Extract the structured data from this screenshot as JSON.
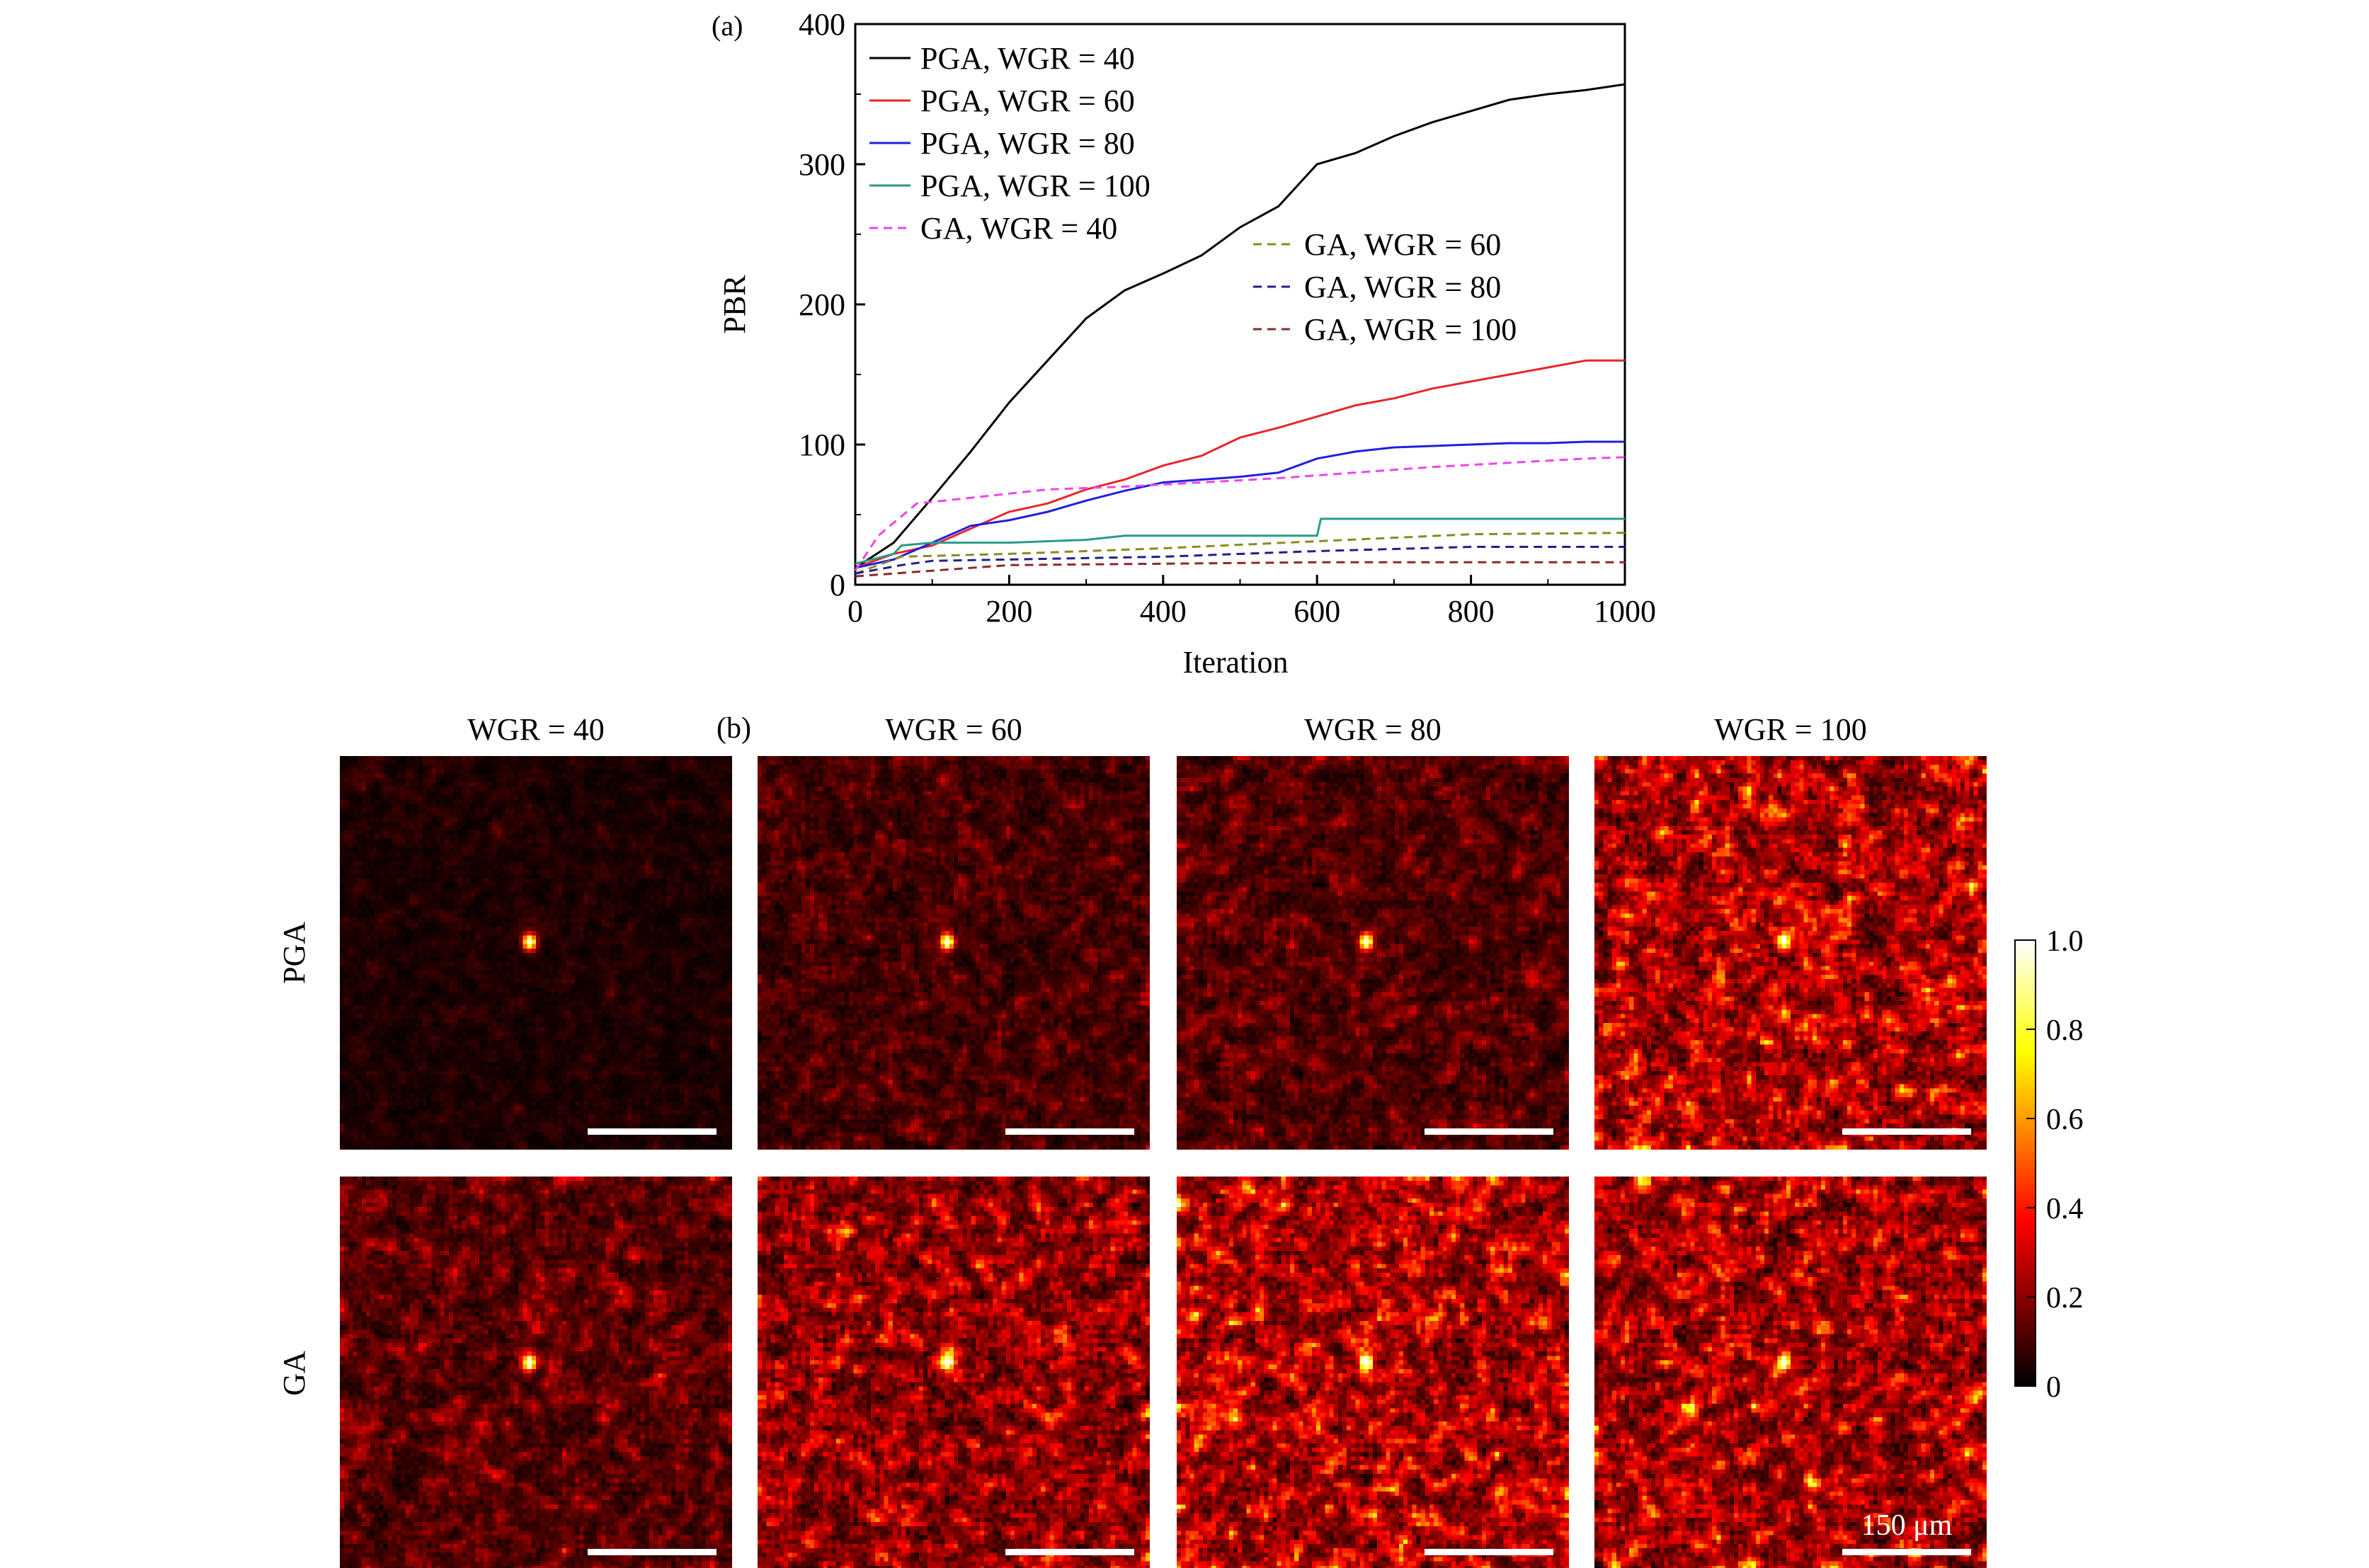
{
  "chart_data": [
    {
      "type": "line",
      "panel_label": "(a)",
      "xlabel": "Iteration",
      "ylabel": "PBR",
      "xlim": [
        0,
        1000
      ],
      "ylim": [
        0,
        400
      ],
      "xticks": [
        "0",
        "200",
        "400",
        "600",
        "800",
        "1000"
      ],
      "yticks": [
        "0",
        "100",
        "200",
        "300",
        "400"
      ],
      "legend_placement": "top-left and center-right",
      "series": [
        {
          "name": "PGA, WGR = 40",
          "color": "#000000",
          "dash": false,
          "x": [
            0,
            50,
            100,
            150,
            200,
            250,
            300,
            350,
            400,
            450,
            500,
            550,
            600,
            650,
            700,
            750,
            800,
            850,
            900,
            950,
            1000
          ],
          "y": [
            12,
            30,
            62,
            95,
            130,
            160,
            190,
            210,
            222,
            235,
            255,
            270,
            300,
            308,
            320,
            330,
            338,
            346,
            350,
            353,
            357
          ]
        },
        {
          "name": "PGA, WGR = 60",
          "color": "#e8262a",
          "dash": false,
          "x": [
            0,
            50,
            100,
            150,
            200,
            250,
            300,
            350,
            400,
            450,
            500,
            550,
            600,
            650,
            700,
            750,
            800,
            850,
            900,
            950,
            1000
          ],
          "y": [
            12,
            22,
            28,
            40,
            52,
            58,
            68,
            75,
            85,
            92,
            105,
            112,
            120,
            128,
            133,
            140,
            145,
            150,
            155,
            160,
            160
          ]
        },
        {
          "name": "PGA, WGR = 80",
          "color": "#1f1fe0",
          "dash": false,
          "x": [
            0,
            50,
            100,
            150,
            200,
            250,
            300,
            350,
            400,
            450,
            500,
            550,
            600,
            650,
            700,
            750,
            800,
            850,
            900,
            950,
            1000
          ],
          "y": [
            12,
            18,
            30,
            42,
            46,
            52,
            60,
            67,
            73,
            75,
            77,
            80,
            90,
            95,
            98,
            99,
            100,
            101,
            101,
            102,
            102
          ]
        },
        {
          "name": "PGA, WGR = 100",
          "color": "#2a9a8c",
          "dash": false,
          "x": [
            0,
            50,
            60,
            100,
            200,
            300,
            350,
            600,
            605,
            1000
          ],
          "y": [
            15,
            22,
            28,
            30,
            30,
            32,
            35,
            35,
            47,
            47
          ]
        },
        {
          "name": "GA, WGR = 40",
          "color": "#ee44ee",
          "dash": true,
          "x": [
            0,
            30,
            80,
            150,
            250,
            350,
            450,
            550,
            650,
            750,
            850,
            950,
            1000
          ],
          "y": [
            10,
            35,
            58,
            62,
            68,
            70,
            73,
            76,
            80,
            84,
            87,
            90,
            91
          ]
        },
        {
          "name": "GA, WGR = 60",
          "color": "#8a8a20",
          "dash": true,
          "x": [
            0,
            60,
            200,
            400,
            600,
            800,
            1000
          ],
          "y": [
            8,
            20,
            22,
            26,
            31,
            36,
            37
          ]
        },
        {
          "name": "GA, WGR = 80",
          "color": "#20208a",
          "dash": true,
          "x": [
            0,
            60,
            100,
            400,
            600,
            800,
            1000
          ],
          "y": [
            8,
            14,
            17,
            20,
            24,
            27,
            27
          ]
        },
        {
          "name": "GA, WGR = 100",
          "color": "#8a2a2a",
          "dash": true,
          "x": [
            0,
            100,
            200,
            600,
            1000
          ],
          "y": [
            6,
            10,
            14,
            16,
            16
          ]
        }
      ]
    },
    {
      "type": "heatmap",
      "panel_label": "(b)",
      "columns": [
        "WGR = 40",
        "WGR = 60",
        "WGR = 80",
        "WGR = 100"
      ],
      "rows": [
        "PGA",
        "GA"
      ],
      "colormap": "hot",
      "colorbar_ticks": [
        "1.0",
        "0.8",
        "0.6",
        "0.4",
        "0.2",
        "0"
      ],
      "colorbar_range": [
        0,
        1
      ],
      "scale_bar_label": "150 μm",
      "focus_peak": 1.0,
      "background_level": [
        [
          0.05,
          0.12,
          0.14,
          0.3
        ],
        [
          0.15,
          0.25,
          0.3,
          0.28
        ]
      ]
    }
  ]
}
